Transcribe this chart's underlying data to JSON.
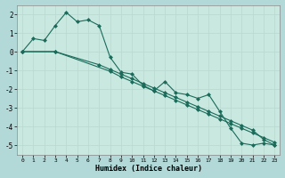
{
  "xlabel": "Humidex (Indice chaleur)",
  "background_color": "#b2d8d8",
  "plot_bg_color": "#c8e8e0",
  "grid_color": "#b8d8d0",
  "line_color": "#1a6b5a",
  "xlim": [
    -0.5,
    23.5
  ],
  "ylim": [
    -5.5,
    2.5
  ],
  "yticks": [
    -5,
    -4,
    -3,
    -2,
    -1,
    0,
    1,
    2
  ],
  "xticks": [
    0,
    1,
    2,
    3,
    4,
    5,
    6,
    7,
    8,
    9,
    10,
    11,
    12,
    13,
    14,
    15,
    16,
    17,
    18,
    19,
    20,
    21,
    22,
    23
  ],
  "series1_x": [
    0,
    1,
    2,
    3,
    4,
    5,
    6,
    7,
    8,
    9,
    10,
    11,
    12,
    13,
    14,
    15,
    16,
    17,
    18,
    19,
    20,
    21,
    22,
    23
  ],
  "series1_y": [
    0.0,
    0.7,
    0.6,
    1.4,
    2.1,
    1.6,
    1.7,
    1.4,
    -0.3,
    -1.1,
    -1.2,
    -1.8,
    -2.1,
    -1.6,
    -2.2,
    -2.3,
    -2.5,
    -2.3,
    -3.2,
    -4.1,
    -4.9,
    -5.0,
    -4.9,
    -5.0
  ],
  "series2_x": [
    0,
    3,
    8,
    9,
    10,
    11,
    12,
    13,
    14,
    15,
    16,
    17,
    18,
    19,
    20,
    21,
    22,
    23
  ],
  "series2_y": [
    0.0,
    0.0,
    -1.05,
    -1.35,
    -1.6,
    -1.85,
    -2.1,
    -2.35,
    -2.6,
    -2.85,
    -3.1,
    -3.35,
    -3.6,
    -3.85,
    -4.1,
    -4.35,
    -4.6,
    -4.85
  ],
  "series3_x": [
    0,
    3,
    7,
    8,
    9,
    10,
    11,
    12,
    13,
    14,
    15,
    16,
    17,
    18,
    19,
    20,
    21,
    22,
    23
  ],
  "series3_y": [
    0.0,
    0.0,
    -0.7,
    -0.95,
    -1.2,
    -1.45,
    -1.7,
    -1.95,
    -2.2,
    -2.45,
    -2.7,
    -2.95,
    -3.2,
    -3.45,
    -3.7,
    -3.95,
    -4.2,
    -4.7,
    -5.0
  ]
}
